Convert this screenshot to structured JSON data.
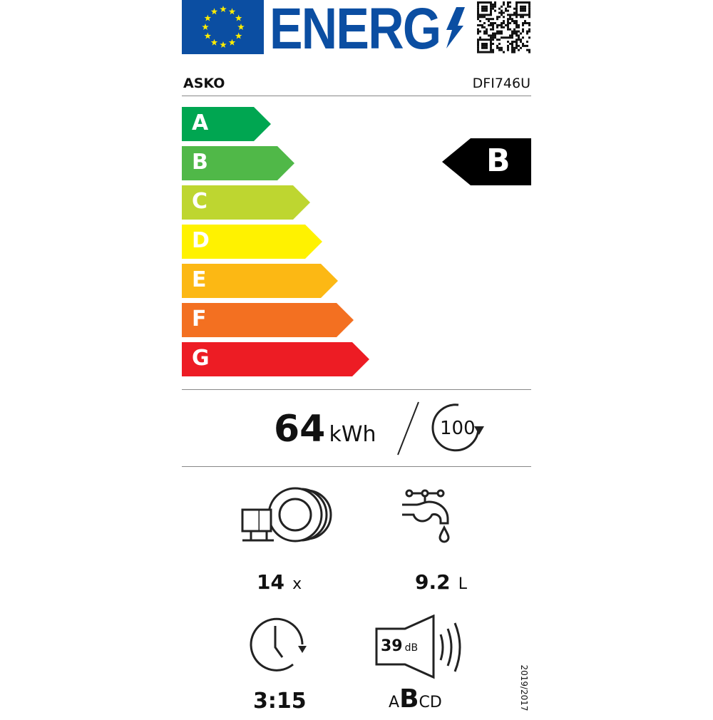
{
  "header": {
    "logo_text": "ENERG",
    "flag_color": "#0b4ea2",
    "star_color": "#ffed00",
    "energ_color": "#0b4ea2",
    "qr_icon": "qr-code-icon"
  },
  "supplier": "ASKO",
  "model": "DFI746U",
  "scale": [
    {
      "letter": "A",
      "color": "#00a651"
    },
    {
      "letter": "B",
      "color": "#50b848"
    },
    {
      "letter": "C",
      "color": "#bed630"
    },
    {
      "letter": "D",
      "color": "#fff200"
    },
    {
      "letter": "E",
      "color": "#fcb814"
    },
    {
      "letter": "F",
      "color": "#f37021"
    },
    {
      "letter": "G",
      "color": "#ed1c24"
    }
  ],
  "rating": {
    "class": "B",
    "color": "#000000"
  },
  "consumption": {
    "value": "64",
    "unit": "kWh",
    "cycles": "100"
  },
  "capacity": {
    "value": "14",
    "unit": "x",
    "icon": "place-settings-icon"
  },
  "water": {
    "value": "9.2",
    "unit": "L",
    "icon": "water-tap-icon"
  },
  "duration": {
    "value": "3:15",
    "icon": "clock-icon"
  },
  "noise": {
    "value": "39",
    "unit": "dB",
    "classes": [
      "A",
      "B",
      "C",
      "D"
    ],
    "selected": "B",
    "icon": "speaker-icon"
  },
  "regulation": "2019/2017"
}
